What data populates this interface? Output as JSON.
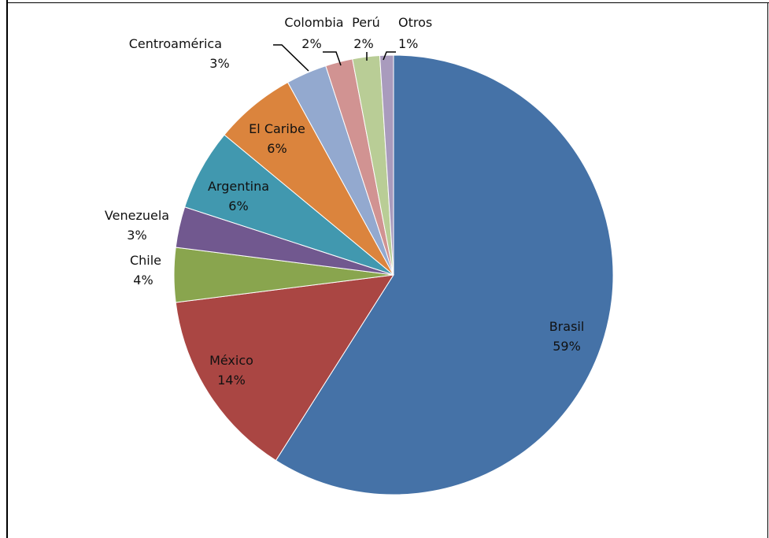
{
  "chart_data": {
    "type": "pie",
    "title": "",
    "slices": [
      {
        "label": "Brasil",
        "value": 59,
        "value_label": "59%",
        "color": "#4572A7"
      },
      {
        "label": "México",
        "value": 14,
        "value_label": "14%",
        "color": "#AA4643"
      },
      {
        "label": "Chile",
        "value": 4,
        "value_label": "4%",
        "color": "#89A54E"
      },
      {
        "label": "Venezuela",
        "value": 3,
        "value_label": "3%",
        "color": "#71588F"
      },
      {
        "label": "Argentina",
        "value": 6,
        "value_label": "6%",
        "color": "#4198AF"
      },
      {
        "label": "El Caribe",
        "value": 6,
        "value_label": "6%",
        "color": "#DB843D"
      },
      {
        "label": "Centroamérica",
        "value": 3,
        "value_label": "3%",
        "color": "#93A9CF"
      },
      {
        "label": "Colombia",
        "value": 2,
        "value_label": "2%",
        "color": "#D19392"
      },
      {
        "label": "Perú",
        "value": 2,
        "value_label": "2%",
        "color": "#B9CD96"
      },
      {
        "label": "Otros",
        "value": 1,
        "value_label": "1%",
        "color": "#A99BBD"
      }
    ],
    "legend": "none"
  }
}
